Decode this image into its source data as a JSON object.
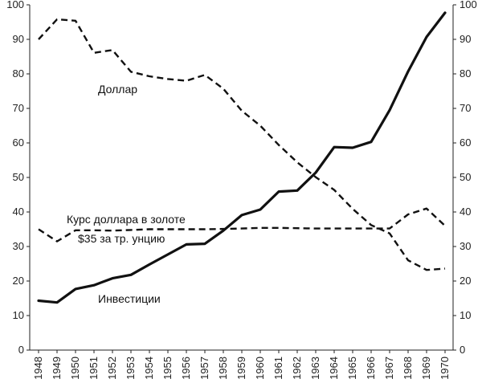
{
  "chart_data": {
    "type": "line",
    "title": "",
    "xlabel": "",
    "ylabel": "",
    "ylim": [
      0,
      100
    ],
    "y_ticks": [
      0,
      10,
      20,
      30,
      40,
      50,
      60,
      70,
      80,
      90,
      100
    ],
    "grid": false,
    "x": [
      "1948",
      "1949",
      "1950",
      "1951",
      "1952",
      "1953",
      "1954",
      "1955",
      "1956",
      "1957",
      "1958",
      "1959",
      "1960",
      "1961",
      "1962",
      "1963",
      "1964",
      "1965",
      "1966",
      "1967",
      "1968",
      "1969",
      "1970"
    ],
    "series": [
      {
        "name": "Инвестиции",
        "style": "solid",
        "values": [
          14.3,
          13.8,
          17.7,
          18.8,
          20.8,
          21.8,
          24.8,
          27.7,
          30.6,
          30.8,
          34.6,
          39.1,
          40.7,
          45.9,
          46.2,
          51.4,
          58.8,
          58.6,
          60.3,
          69.5,
          80.7,
          90.7,
          97.7
        ]
      },
      {
        "name": "Доллар",
        "style": "dashed",
        "values": [
          90.0,
          95.8,
          95.4,
          86.1,
          86.9,
          80.6,
          79.3,
          78.5,
          78.0,
          79.7,
          75.7,
          69.3,
          65.0,
          59.4,
          54.4,
          50.1,
          46.4,
          40.9,
          36.2,
          33.8,
          26.0,
          23.2,
          23.6
        ]
      },
      {
        "name": "Курс доллара в золоте",
        "style": "dashed",
        "values": [
          35.0,
          31.5,
          34.7,
          34.7,
          34.6,
          34.8,
          35.0,
          35.0,
          35.0,
          35.0,
          35.1,
          35.2,
          35.4,
          35.4,
          35.3,
          35.2,
          35.2,
          35.2,
          35.2,
          35.2,
          39.3,
          41.0,
          36.0
        ]
      }
    ],
    "annotations": {
      "dollar": "Доллар",
      "gold_line1": "Курс доллара в золоте",
      "gold_line2": "$35 за тр. унцию",
      "investments": "Инвестиции"
    }
  }
}
